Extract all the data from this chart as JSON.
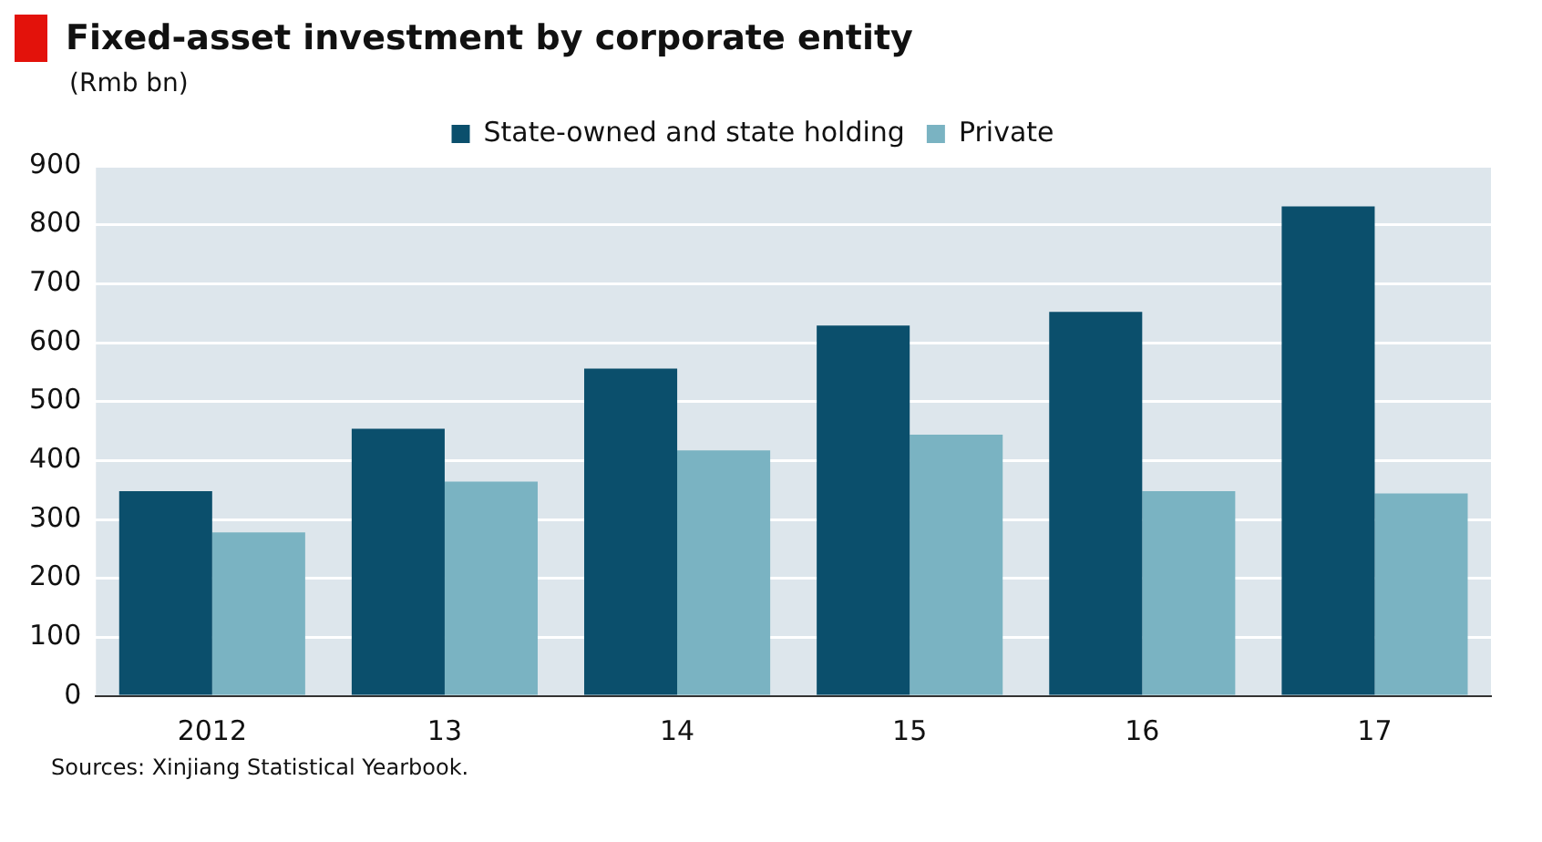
{
  "chart_data": {
    "type": "bar",
    "title": "Fixed-asset investment by corporate entity",
    "subtitle": "(Rmb bn)",
    "categories": [
      "2012",
      "13",
      "14",
      "15",
      "16",
      "17"
    ],
    "series": [
      {
        "name": "State-owned and state holding",
        "color": "#0b4f6c",
        "values": [
          348,
          454,
          556,
          629,
          652,
          831
        ]
      },
      {
        "name": "Private",
        "color": "#7ab3c2",
        "values": [
          278,
          364,
          417,
          444,
          348,
          344
        ]
      }
    ],
    "ylim": [
      0,
      900
    ],
    "yticks": [
      0,
      100,
      200,
      300,
      400,
      500,
      600,
      700,
      800,
      900
    ],
    "grid": "y",
    "legend": "top",
    "annotations": [
      "Sources: Xinjiang Statistical Yearbook."
    ]
  }
}
